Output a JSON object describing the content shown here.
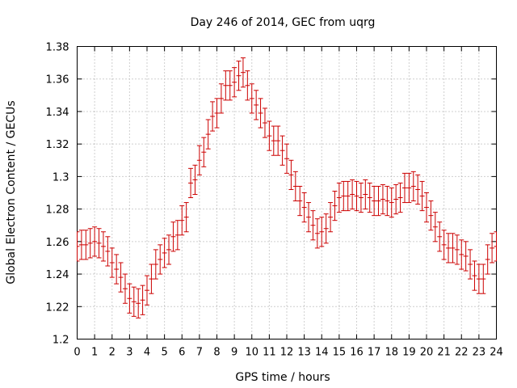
{
  "chart_data": {
    "type": "line",
    "title": "Day 246 of 2014, GEC from uqrg",
    "xlabel": "GPS time / hours",
    "ylabel": "Global Electron Content / GECUs",
    "xlim": [
      0,
      24
    ],
    "ylim": [
      1.2,
      1.38
    ],
    "grid": true,
    "legend": "none",
    "error_bar_color": "#cc0000",
    "x_ticks": [
      "0",
      "1",
      "2",
      "3",
      "4",
      "5",
      "6",
      "7",
      "8",
      "9",
      "10",
      "11",
      "12",
      "13",
      "14",
      "15",
      "16",
      "17",
      "18",
      "19",
      "20",
      "21",
      "22",
      "23",
      "24"
    ],
    "y_ticks": [
      "1.2",
      "1.22",
      "1.24",
      "1.26",
      "1.28",
      "1.3",
      "1.32",
      "1.34",
      "1.36",
      "1.38"
    ],
    "series": [
      {
        "x": [
          0,
          0.25,
          0.5,
          0.75,
          1,
          1.25,
          1.5,
          1.75,
          2,
          2.25,
          2.5,
          2.75,
          3,
          3.25,
          3.5,
          3.75,
          4,
          4.25,
          4.5,
          4.75,
          5,
          5.25,
          5.5,
          5.75,
          6,
          6.25,
          6.5,
          6.75,
          7,
          7.25,
          7.5,
          7.75,
          8,
          8.25,
          8.5,
          8.75,
          9,
          9.25,
          9.5,
          9.75,
          10,
          10.25,
          10.5,
          10.75,
          11,
          11.25,
          11.5,
          11.75,
          12,
          12.25,
          12.5,
          12.75,
          13,
          13.25,
          13.5,
          13.75,
          14,
          14.25,
          14.5,
          14.75,
          15,
          15.25,
          15.5,
          15.75,
          16,
          16.25,
          16.5,
          16.75,
          17,
          17.25,
          17.5,
          17.75,
          18,
          18.25,
          18.5,
          18.75,
          19,
          19.25,
          19.5,
          19.75,
          20,
          20.25,
          20.5,
          20.75,
          21,
          21.25,
          21.5,
          21.75,
          22,
          22.25,
          22.5,
          22.75,
          23,
          23.25,
          23.5,
          23.75,
          24
        ],
        "y": [
          1.257,
          1.258,
          1.258,
          1.259,
          1.26,
          1.259,
          1.257,
          1.254,
          1.247,
          1.243,
          1.238,
          1.231,
          1.225,
          1.223,
          1.222,
          1.224,
          1.23,
          1.237,
          1.246,
          1.249,
          1.253,
          1.255,
          1.263,
          1.264,
          1.273,
          1.275,
          1.296,
          1.298,
          1.31,
          1.315,
          1.326,
          1.337,
          1.339,
          1.348,
          1.356,
          1.356,
          1.358,
          1.362,
          1.364,
          1.356,
          1.348,
          1.344,
          1.339,
          1.333,
          1.325,
          1.322,
          1.322,
          1.316,
          1.311,
          1.301,
          1.294,
          1.285,
          1.281,
          1.275,
          1.27,
          1.265,
          1.266,
          1.268,
          1.275,
          1.282,
          1.287,
          1.288,
          1.288,
          1.289,
          1.288,
          1.287,
          1.289,
          1.287,
          1.285,
          1.285,
          1.286,
          1.285,
          1.284,
          1.286,
          1.287,
          1.293,
          1.293,
          1.294,
          1.292,
          1.288,
          1.281,
          1.276,
          1.269,
          1.263,
          1.258,
          1.256,
          1.256,
          1.255,
          1.252,
          1.251,
          1.246,
          1.239,
          1.237,
          1.237,
          1.249,
          1.256,
          1.257
        ],
        "err": 0.009
      }
    ]
  }
}
